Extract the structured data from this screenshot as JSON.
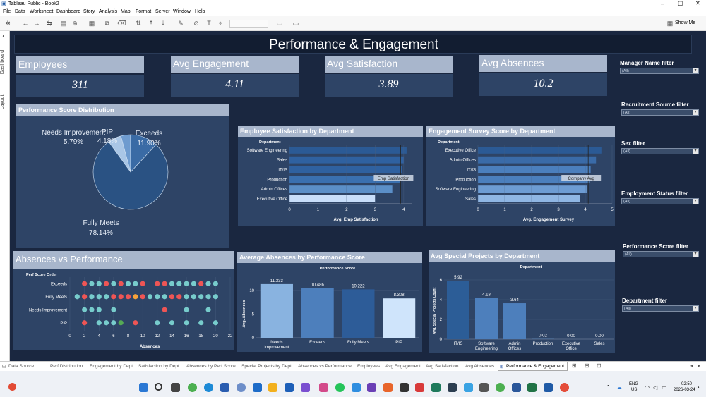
{
  "window": {
    "title": "Tableau Public - Book2",
    "show_me": "Show Me"
  },
  "menu": [
    "File",
    "Data",
    "Worksheet",
    "Dashboard",
    "Story",
    "Analysis",
    "Map",
    "Format",
    "Server",
    "Window",
    "Help"
  ],
  "side_tabs": {
    "dashboard": "Dashboard",
    "layout": "Layout"
  },
  "dashboard_title": "Performance & Engagement",
  "kpis": [
    {
      "label": "Employees",
      "value": "311"
    },
    {
      "label": "Avg Engagement",
      "value": "4.11"
    },
    {
      "label": "Avg Satisfaction",
      "value": "3.89"
    },
    {
      "label": "Avg Absences",
      "value": "10.2"
    }
  ],
  "filters": [
    {
      "label": "Manager Name filter",
      "value": "(All)"
    },
    {
      "label": "Recruitment Source filter",
      "value": "(All)"
    },
    {
      "label": "Sex filter",
      "value": "(All)"
    },
    {
      "label": "Employment Status filter",
      "value": "(All)"
    },
    {
      "label": "Performance Score filter",
      "value": "(All)"
    },
    {
      "label": "Department filter",
      "value": "(All)"
    }
  ],
  "pie": {
    "title": "Performance Score Distribution",
    "slices": [
      {
        "name": "Fully Meets",
        "pct": "78.14%",
        "value": 78.14,
        "color": "#2a5283"
      },
      {
        "name": "Exceeds",
        "pct": "11.90%",
        "value": 11.9,
        "color": "#3a6ba5"
      },
      {
        "name": "Needs Improvement",
        "pct": "5.79%",
        "value": 5.79,
        "color": "#a9c6e6"
      },
      {
        "name": "PIP",
        "pct": "4.18%",
        "value": 4.18,
        "color": "#6e9bcf"
      }
    ]
  },
  "sat_chart": {
    "title": "Employee Satisfaction by Department",
    "dim": "Department",
    "xlabel": "Avg. Emp Satisfaction",
    "ref_label": "Emp Satisfaction",
    "ref_value": 3.89,
    "cats": [
      "Software Engineering",
      "Sales",
      "IT/IS",
      "Production",
      "Admin Offices",
      "Executive Office"
    ],
    "values": [
      4.1,
      4.0,
      3.95,
      3.9,
      3.6,
      3.0
    ],
    "ticks": [
      "0",
      "1",
      "2",
      "3",
      "4"
    ],
    "xmax": 4.3
  },
  "eng_chart": {
    "title": "Engagement Survey Score by Department",
    "dim": "Department",
    "xlabel": "Avg. Engagement Survey",
    "ref_label": "Company Avg",
    "ref_value": 4.11,
    "cats": [
      "Executive Office",
      "Admin Offices",
      "IT/IS",
      "Production",
      "Software Engineering",
      "Sales"
    ],
    "values": [
      4.6,
      4.4,
      4.2,
      4.15,
      4.05,
      3.8
    ],
    "ticks": [
      "0",
      "1",
      "2",
      "3",
      "4",
      "5"
    ],
    "xmax": 5.0
  },
  "abs_perf": {
    "title": "Absences vs Performance",
    "dim": "Perf Score Order",
    "xlabel": "Absences",
    "cats": [
      "Exceeds",
      "Fully Meets",
      "Needs Improvement",
      "PIP"
    ],
    "ticks": [
      "0",
      "2",
      "4",
      "6",
      "8",
      "10",
      "12",
      "14",
      "16",
      "18",
      "20",
      "22"
    ]
  },
  "avg_abs": {
    "title": "Average Absences by Performance Score",
    "dim": "Performance Score",
    "ylabel": "Avg. Absences",
    "cats": [
      "Needs Improvement",
      "Exceeds",
      "Fully Meets",
      "PIP"
    ],
    "values": [
      11.333,
      10.486,
      10.222,
      8.308
    ],
    "labels": [
      "11.333",
      "10.486",
      "10.222",
      "8.308"
    ],
    "ticks": [
      "0",
      "5",
      "10"
    ]
  },
  "projects": {
    "title": "Avg Special Projects by Department",
    "dim": "Department",
    "ylabel": "Avg. Special Projects Count",
    "cats": [
      "IT/IS",
      "Software Engineering",
      "Admin Offices",
      "Production",
      "Executive Office",
      "Sales"
    ],
    "values": [
      5.92,
      4.18,
      3.64,
      0.02,
      0.0,
      0.0
    ],
    "labels": [
      "5.92",
      "4.18",
      "3.64",
      "0.02",
      "0.00",
      "0.00"
    ],
    "ticks": [
      "0",
      "2",
      "4",
      "6"
    ]
  },
  "sheet_tabs": [
    "Data Source",
    "Perf Distribution",
    "Engagement by Dept",
    "Satisfaction by Dept",
    "Absences by Perf Score",
    "Special Projects by Dept",
    "Absences vs Performance",
    "Employees",
    "Avg Engagement",
    "Avg Satisfaction",
    "Avg Absences",
    "Performance & Engagement"
  ],
  "taskbar": {
    "lang": "ENG",
    "region": "US",
    "time": "02:50",
    "date": "2026-03-24"
  }
}
